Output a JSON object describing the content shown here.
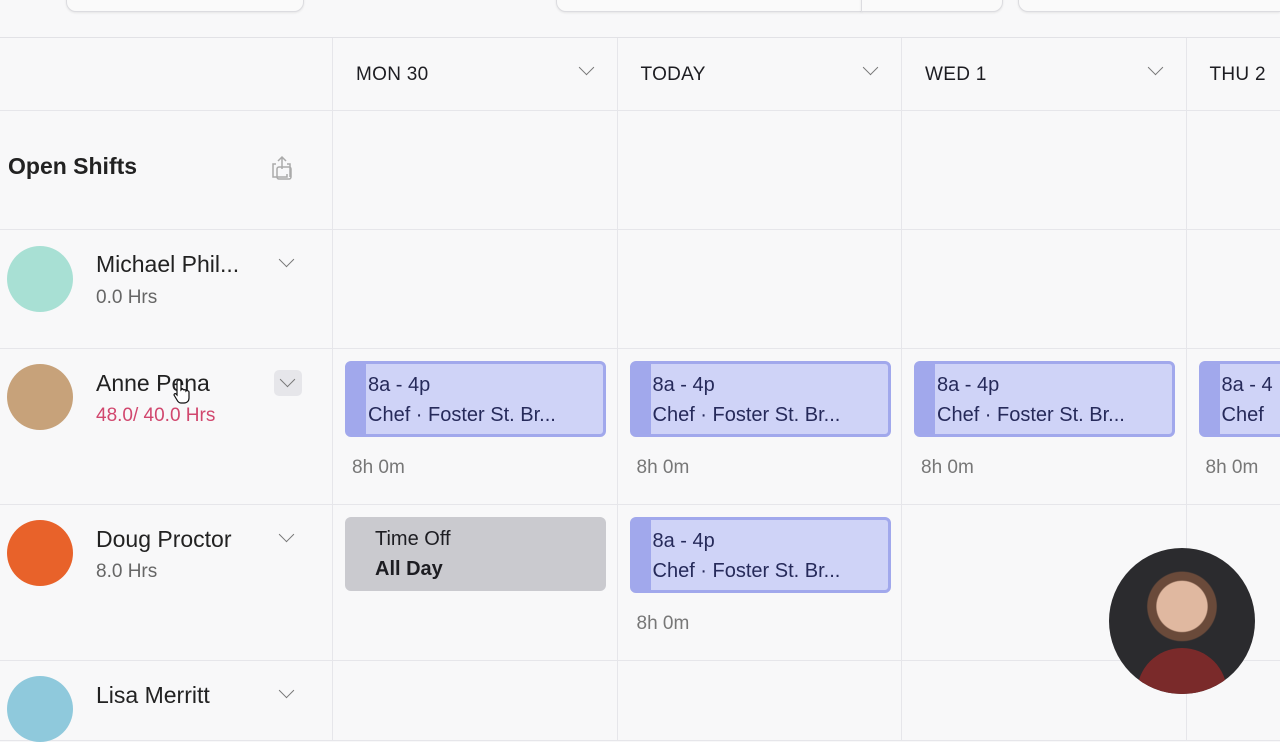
{
  "days": [
    {
      "label": "MON 30"
    },
    {
      "label": "TODAY"
    },
    {
      "label": "WED 1"
    },
    {
      "label": "THU 2"
    }
  ],
  "open_shifts": {
    "title": "Open Shifts"
  },
  "employees": [
    {
      "name": "Michael Phil...",
      "hours": "0.0 Hrs",
      "avatar_color": "#a8e0d4"
    },
    {
      "name": "Anne Pena",
      "hours": "48.0/ 40.0 Hrs",
      "avatar_color": "#c7a27a",
      "over_hours_color": "#d1476e"
    },
    {
      "name": "Doug Proctor",
      "hours": "8.0 Hrs",
      "avatar_color": "#e8622a"
    },
    {
      "name": "Lisa Merritt",
      "hours": "",
      "avatar_color": "#8fc9dc"
    }
  ],
  "shift": {
    "time": "8a - 4p",
    "role": "Chef · Foster St. Br...",
    "duration": "8h 0m",
    "color": "#cfd3f7",
    "border": "#a1a8ec"
  },
  "shift_partial": {
    "time": "8a - 4",
    "role": "Chef"
  },
  "time_off": {
    "line1": "Time Off",
    "line2": "All Day"
  }
}
